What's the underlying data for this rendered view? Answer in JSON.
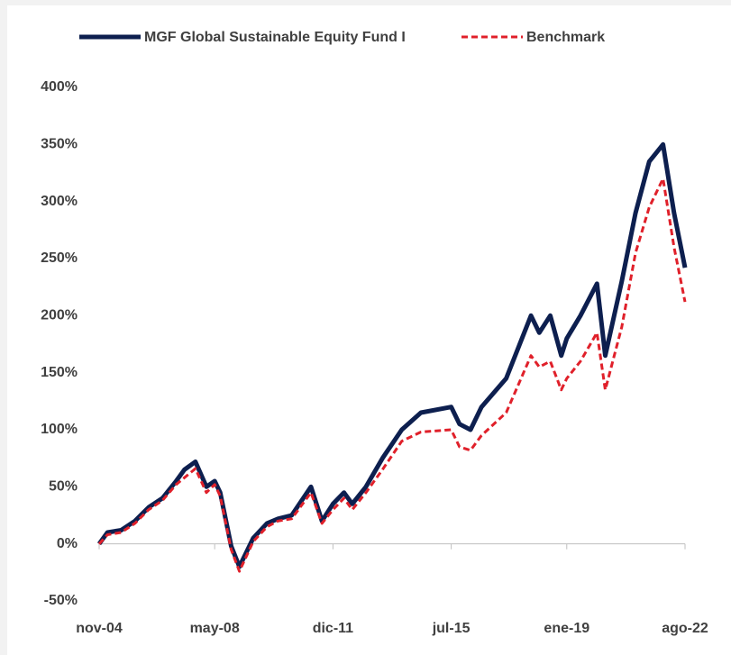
{
  "chart_data": {
    "type": "line",
    "x": [
      "nov-04",
      "feb-05",
      "jul-05",
      "dic-05",
      "may-06",
      "oct-06",
      "mar-07",
      "jun-07",
      "oct-07",
      "feb-08",
      "may-08",
      "jul-08",
      "nov-08",
      "feb-09",
      "jul-09",
      "dic-09",
      "abr-10",
      "sep-10",
      "abr-11",
      "ago-11",
      "dic-11",
      "abr-12",
      "jul-12",
      "dic-12",
      "jun-13",
      "ene-14",
      "ago-14",
      "jul-15",
      "oct-15",
      "feb-16",
      "jun-16",
      "mar-17",
      "dic-17",
      "mar-18",
      "jul-18",
      "nov-18",
      "ene-19",
      "jun-19",
      "dic-19",
      "mar-20",
      "sep-20",
      "feb-21",
      "jul-21",
      "dic-21",
      "abr-22",
      "ago-22"
    ],
    "series": [
      {
        "name": "MGF Global Sustainable Equity Fund I",
        "color": "#0d1f4f",
        "values": [
          0,
          10,
          12,
          20,
          32,
          40,
          55,
          65,
          72,
          50,
          55,
          45,
          -2,
          -20,
          5,
          18,
          22,
          25,
          50,
          20,
          35,
          45,
          35,
          50,
          75,
          100,
          115,
          120,
          105,
          100,
          120,
          145,
          200,
          185,
          200,
          165,
          180,
          200,
          228,
          165,
          230,
          290,
          335,
          350,
          290,
          242
        ]
      },
      {
        "name": "Benchmark",
        "color": "#e0202a",
        "values": [
          0,
          8,
          10,
          18,
          30,
          38,
          52,
          58,
          66,
          45,
          52,
          42,
          -5,
          -24,
          2,
          15,
          20,
          22,
          45,
          18,
          30,
          40,
          30,
          45,
          65,
          90,
          98,
          100,
          85,
          82,
          95,
          115,
          165,
          155,
          160,
          135,
          145,
          160,
          185,
          135,
          190,
          255,
          295,
          320,
          260,
          212
        ]
      }
    ],
    "xticks": [
      "nov-04",
      "may-08",
      "dic-11",
      "jul-15",
      "ene-19",
      "ago-22"
    ],
    "ylim": [
      -50,
      400
    ],
    "yticks": [
      {
        "value": -50,
        "label": "-50%"
      },
      {
        "value": 0,
        "label": "0%"
      },
      {
        "value": 50,
        "label": "50%"
      },
      {
        "value": 100,
        "label": "100%"
      },
      {
        "value": 150,
        "label": "150%"
      },
      {
        "value": 200,
        "label": "200%"
      },
      {
        "value": 250,
        "label": "250%"
      },
      {
        "value": 300,
        "label": "300%"
      },
      {
        "value": 350,
        "label": "350%"
      },
      {
        "value": 400,
        "label": "400%"
      }
    ],
    "legend": "top"
  }
}
